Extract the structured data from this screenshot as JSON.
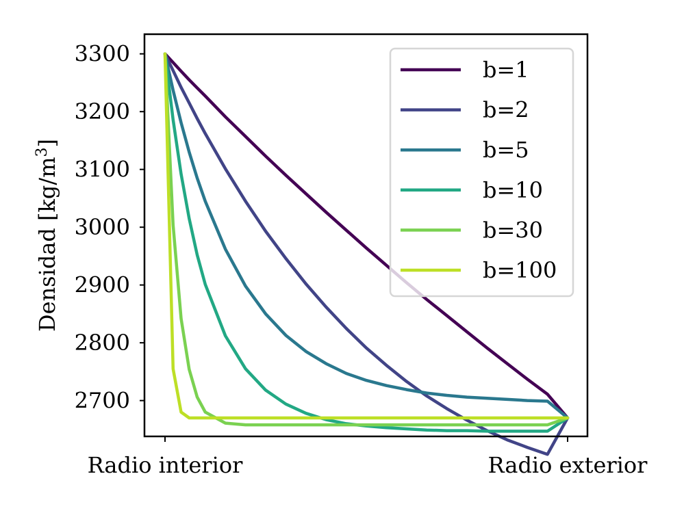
{
  "chart_data": {
    "type": "line",
    "title": "",
    "xlabel": "",
    "ylabel": "Densidad [kg/m³]",
    "ylabel_parts": {
      "main": "Densidad [kg/m",
      "sup": "3",
      "tail": "]"
    },
    "x_range": [
      0,
      1
    ],
    "ylim": [
      2638,
      3334
    ],
    "x_ticks": [
      {
        "value": 0,
        "label": "Radio interior"
      },
      {
        "value": 1,
        "label": "Radio exterior"
      }
    ],
    "y_ticks": [
      2700,
      2800,
      2900,
      3000,
      3100,
      3200,
      3300
    ],
    "grid": false,
    "legend_position": "top-right",
    "rho_inner": 3300,
    "rho_outer": 2670,
    "x": [
      0.0,
      0.02,
      0.04,
      0.06,
      0.08,
      0.1,
      0.15,
      0.2,
      0.25,
      0.3,
      0.35,
      0.4,
      0.45,
      0.5,
      0.55,
      0.6,
      0.65,
      0.7,
      0.75,
      0.8,
      0.85,
      0.9,
      0.95,
      1.0
    ],
    "series": [
      {
        "name": "b=1",
        "color": "#440154",
        "values": [
          3300,
          3285,
          3270,
          3255,
          3241,
          3227,
          3191,
          3157,
          3123,
          3090,
          3058,
          3026,
          2995,
          2964,
          2934,
          2904,
          2875,
          2847,
          2819,
          2791,
          2764,
          2737,
          2711,
          2670
        ]
      },
      {
        "name": "b=2",
        "color": "#414487",
        "values": [
          3300,
          3271,
          3242,
          3215,
          3188,
          3162,
          3101,
          3045,
          2993,
          2946,
          2902,
          2862,
          2825,
          2791,
          2761,
          2733,
          2708,
          2686,
          2666,
          2648,
          2632,
          2619,
          2607,
          2670
        ]
      },
      {
        "name": "b=5",
        "color": "#2a788e",
        "values": [
          3300,
          3237,
          3181,
          3130,
          3085,
          3045,
          2962,
          2898,
          2850,
          2813,
          2785,
          2764,
          2747,
          2735,
          2726,
          2719,
          2713,
          2709,
          2706,
          2704,
          2702,
          2700,
          2699,
          2670
        ]
      },
      {
        "name": "b=10",
        "color": "#22a884",
        "values": [
          3300,
          3186,
          3092,
          3015,
          2952,
          2901,
          2812,
          2755,
          2718,
          2694,
          2678,
          2667,
          2660,
          2656,
          2653,
          2651,
          2649,
          2648,
          2648,
          2647,
          2647,
          2647,
          2647,
          2670
        ]
      },
      {
        "name": "b=30",
        "color": "#7ad151",
        "values": [
          3300,
          3004,
          2842,
          2754,
          2706,
          2680,
          2661,
          2658,
          2658,
          2658,
          2658,
          2658,
          2658,
          2658,
          2658,
          2658,
          2658,
          2658,
          2658,
          2658,
          2658,
          2658,
          2658,
          2670
        ]
      },
      {
        "name": "b=100",
        "color": "#bddf26",
        "values": [
          3300,
          2755,
          2680,
          2670,
          2670,
          2670,
          2670,
          2670,
          2670,
          2670,
          2670,
          2670,
          2670,
          2670,
          2670,
          2670,
          2670,
          2670,
          2670,
          2670,
          2670,
          2670,
          2670,
          2670
        ]
      }
    ]
  }
}
